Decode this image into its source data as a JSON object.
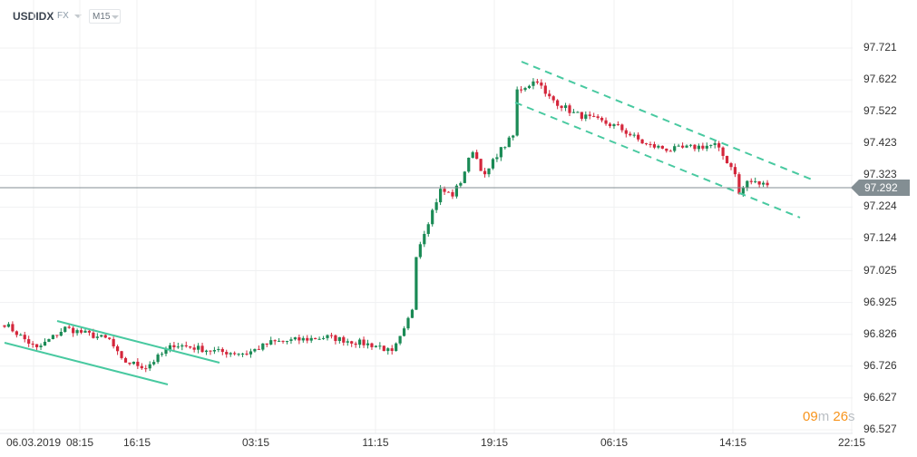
{
  "header": {
    "symbol": "USDIDX",
    "market": "FX",
    "timeframe": "M15"
  },
  "y_axis": [
    "97.721",
    "97.622",
    "97.522",
    "97.423",
    "97.323",
    "97.224",
    "97.124",
    "97.025",
    "96.925",
    "96.826",
    "96.726",
    "96.627",
    "96.527"
  ],
  "x_axis": [
    "06.03.2019",
    "08:15",
    "16:15",
    "03:15",
    "11:15",
    "19:15",
    "06:15",
    "14:15",
    "22:15"
  ],
  "current_price": "97.292",
  "countdown": {
    "minutes": "09",
    "m": "m",
    "seconds": "26",
    "s": "s"
  },
  "colors": {
    "up": "#1a8a55",
    "down": "#d4263b",
    "trend": "#48c9a0",
    "price_line": "#838e93"
  },
  "price_anchors": [
    [
      0,
      96.859
    ],
    [
      8,
      96.78
    ],
    [
      15,
      96.845
    ],
    [
      26,
      96.808
    ],
    [
      29,
      96.743
    ],
    [
      35,
      96.723
    ],
    [
      42,
      96.794
    ],
    [
      53,
      96.771
    ],
    [
      60,
      96.766
    ],
    [
      66,
      96.8
    ],
    [
      80,
      96.817
    ],
    [
      93,
      96.788
    ],
    [
      96,
      96.766
    ],
    [
      99,
      96.836
    ],
    [
      101,
      96.907
    ],
    [
      102,
      97.077
    ],
    [
      104,
      97.148
    ],
    [
      108,
      97.276
    ],
    [
      111,
      97.262
    ],
    [
      113,
      97.304
    ],
    [
      116,
      97.403
    ],
    [
      119,
      97.318
    ],
    [
      122,
      97.389
    ],
    [
      126,
      97.446
    ],
    [
      127,
      97.588
    ],
    [
      132,
      97.622
    ],
    [
      134,
      97.574
    ],
    [
      141,
      97.517
    ],
    [
      152,
      97.474
    ],
    [
      159,
      97.418
    ],
    [
      165,
      97.403
    ],
    [
      176,
      97.418
    ],
    [
      181,
      97.333
    ],
    [
      182,
      97.262
    ],
    [
      184,
      97.304
    ],
    [
      189,
      97.292
    ]
  ]
}
